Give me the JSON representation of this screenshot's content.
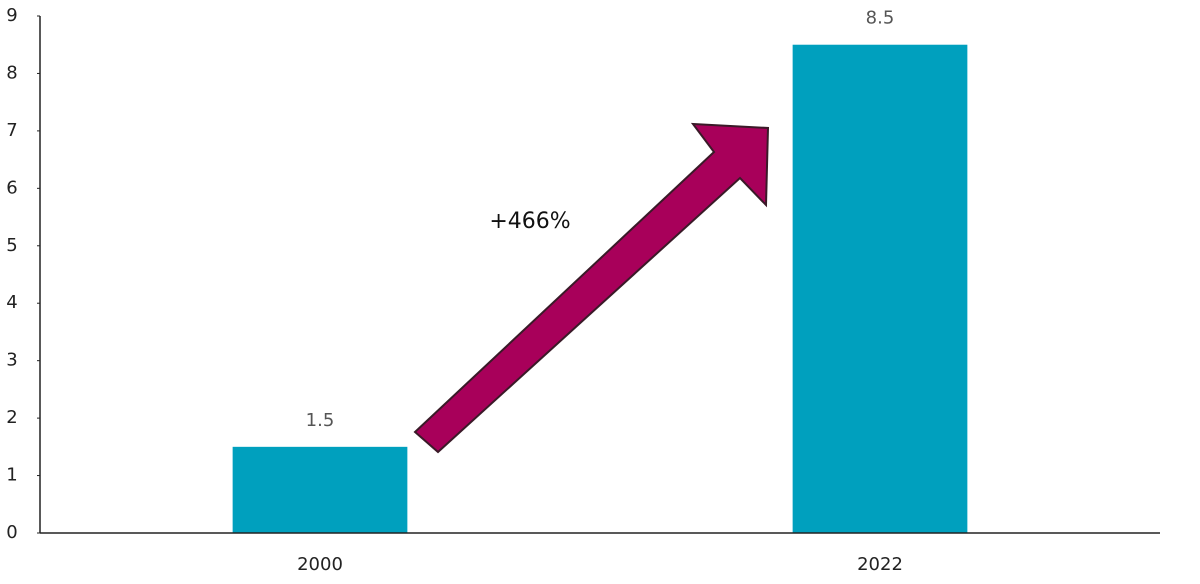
{
  "chart_data": {
    "type": "bar",
    "categories": [
      "2000",
      "2022"
    ],
    "values": [
      1.5,
      8.5
    ],
    "color": "#00a0be",
    "ylim": [
      0,
      9
    ],
    "yticks": [
      0,
      1,
      2,
      3,
      4,
      5,
      6,
      7,
      8,
      9
    ],
    "annotation": "+466%"
  }
}
